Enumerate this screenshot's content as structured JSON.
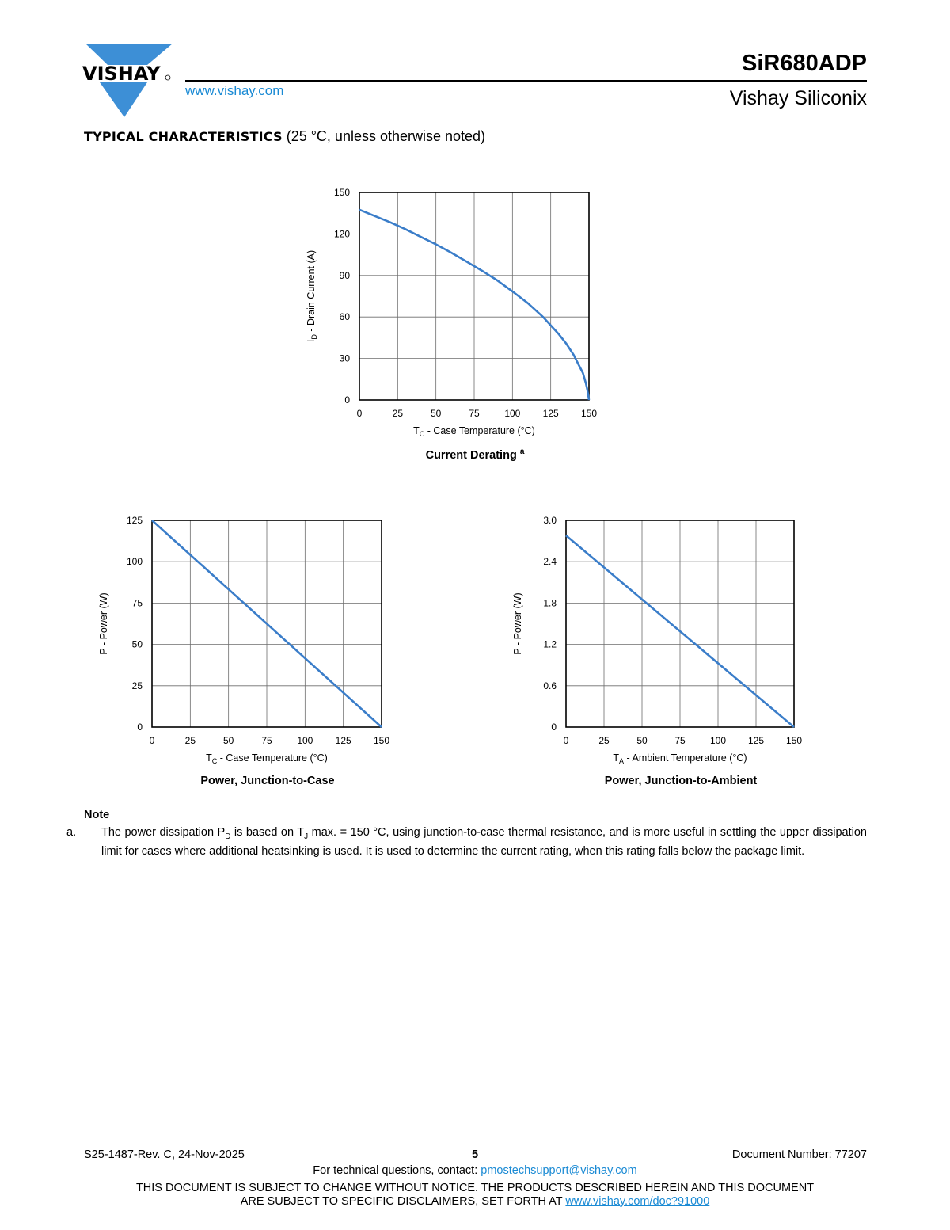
{
  "header": {
    "logo_text": "VISHAY",
    "website": "www.vishay.com",
    "part_number": "SiR680ADP",
    "company": "Vishay Siliconix"
  },
  "section": {
    "title_bold": "TYPICAL CHARACTERISTICS",
    "title_rest": "(25 °C, unless otherwise noted)"
  },
  "colors": {
    "curve": "#3a7dc9",
    "link": "#1a8ad4",
    "logo": "#3d8fd6",
    "grid": "#6d6d6d"
  },
  "chart_data": [
    {
      "type": "line",
      "title": "Current Derating",
      "title_sup": "a",
      "xlabel": {
        "main": "T",
        "sub": "C",
        "rest": " - Case Temperature (°C)"
      },
      "ylabel": {
        "main": "I",
        "sub": "D",
        "rest": " - Drain Current (A)"
      },
      "xlim": [
        0,
        150
      ],
      "ylim": [
        0,
        150
      ],
      "xticks": [
        "0",
        "25",
        "50",
        "75",
        "100",
        "125",
        "150"
      ],
      "yticks": [
        "0",
        "30",
        "60",
        "90",
        "120",
        "150"
      ],
      "grid": true,
      "x": [
        0,
        10,
        20,
        30,
        40,
        50,
        60,
        70,
        80,
        90,
        100,
        110,
        120,
        130,
        135,
        140,
        143,
        146,
        148,
        149,
        150
      ],
      "y": [
        137.5,
        133,
        128.5,
        123.5,
        118,
        112.5,
        106.5,
        100,
        93.5,
        86.5,
        78.5,
        70,
        60,
        48,
        41,
        32.5,
        26,
        19.5,
        12,
        7,
        0
      ]
    },
    {
      "type": "line",
      "title": "Power, Junction-to-Case",
      "xlabel": {
        "main": "T",
        "sub": "C",
        "rest": " - Case Temperature (°C)"
      },
      "ylabel": {
        "main": "P - Power (W)",
        "sub": "",
        "rest": ""
      },
      "xlim": [
        0,
        150
      ],
      "ylim": [
        0,
        125
      ],
      "xticks": [
        "0",
        "25",
        "50",
        "75",
        "100",
        "125",
        "150"
      ],
      "yticks": [
        "0",
        "25",
        "50",
        "75",
        "100",
        "125"
      ],
      "grid": true,
      "x": [
        0,
        150
      ],
      "y": [
        125,
        0
      ]
    },
    {
      "type": "line",
      "title": "Power, Junction-to-Ambient",
      "xlabel": {
        "main": "T",
        "sub": "A",
        "rest": " - Ambient Temperature (°C)"
      },
      "ylabel": {
        "main": "P - Power (W)",
        "sub": "",
        "rest": ""
      },
      "xlim": [
        0,
        150
      ],
      "ylim": [
        0,
        3.0
      ],
      "xticks": [
        "0",
        "25",
        "50",
        "75",
        "100",
        "125",
        "150"
      ],
      "yticks": [
        "0",
        "0.6",
        "1.2",
        "1.8",
        "2.4",
        "3.0"
      ],
      "grid": true,
      "x": [
        0,
        150
      ],
      "y": [
        2.78,
        0
      ]
    }
  ],
  "note": {
    "title": "Note",
    "label": "a.",
    "text_1": "The power dissipation P",
    "sub_1": "D",
    "text_2": " is based on T",
    "sub_2": "J",
    "text_3": " max. = 150 °C, using junction-to-case thermal resistance, and is more useful in settling the upper dissipation limit for cases where additional heatsinking is used. It is used to determine the current rating, when this rating falls below the package limit."
  },
  "footer": {
    "revision": "S25-1487-Rev. C, 24-Nov-2025",
    "page": "5",
    "doc_number": "Document Number: 77207",
    "contact_prefix": "For technical questions, contact: ",
    "contact_email": "pmostechsupport@vishay.com",
    "disclaimer_line1": "THIS DOCUMENT IS SUBJECT TO CHANGE WITHOUT NOTICE. THE PRODUCTS DESCRIBED HEREIN AND THIS DOCUMENT",
    "disclaimer_line2_prefix": "ARE SUBJECT TO SPECIFIC DISCLAIMERS, SET FORTH AT ",
    "disclaimer_link": "www.vishay.com/doc?91000"
  }
}
